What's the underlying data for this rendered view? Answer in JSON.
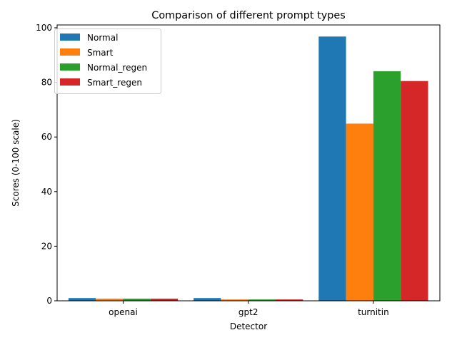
{
  "chart_data": {
    "type": "bar",
    "title": "Comparison of different prompt types",
    "xlabel": "Detector",
    "ylabel": "Scores (0-100 scale)",
    "categories": [
      "openai",
      "gpt2",
      "turnitin"
    ],
    "ylim": [
      0,
      100
    ],
    "yticks": [
      "0",
      "20",
      "40",
      "60",
      "80",
      "100"
    ],
    "legend_position": "top-left",
    "grid": false,
    "series": [
      {
        "name": "Normal",
        "color": "#1f77b4",
        "values": [
          1.0,
          1.0,
          96.8
        ]
      },
      {
        "name": "Smart",
        "color": "#ff7f0e",
        "values": [
          0.8,
          0.5,
          64.9
        ]
      },
      {
        "name": "Normal_regen",
        "color": "#2ca02c",
        "values": [
          0.8,
          0.5,
          84.1
        ]
      },
      {
        "name": "Smart_regen",
        "color": "#d62728",
        "values": [
          0.8,
          0.5,
          80.5
        ]
      }
    ]
  }
}
